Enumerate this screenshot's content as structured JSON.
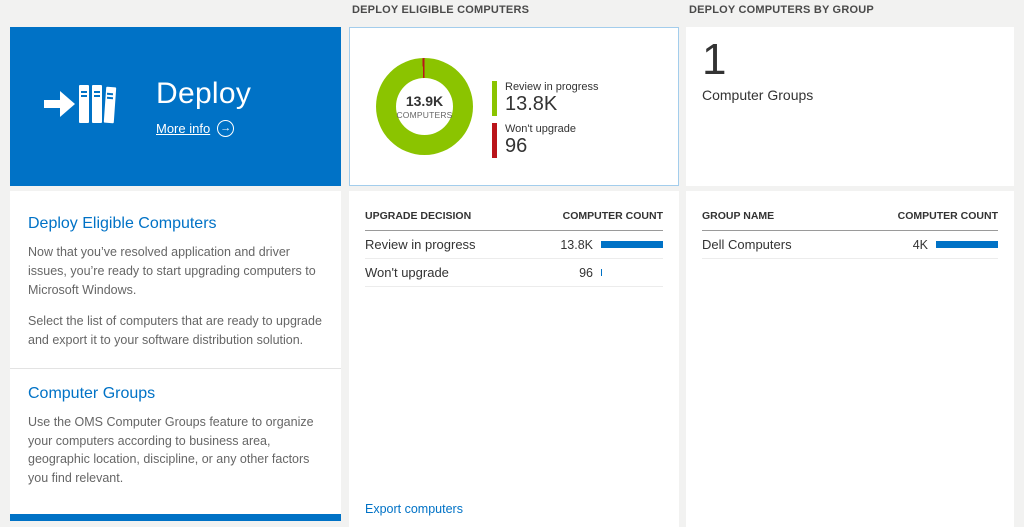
{
  "colors": {
    "accent_blue": "#0072c6",
    "donut_green": "#8bc400",
    "bar_red": "#ba141a",
    "count_bar_blue": "#0072c6"
  },
  "left_panel": {
    "tile": {
      "title": "Deploy",
      "more_info_label": "More info"
    },
    "sections": [
      {
        "heading": "Deploy Eligible Computers",
        "paragraphs": [
          "Now that you’ve resolved application and driver issues, you’re ready to start upgrading computers to Microsoft Windows.",
          "Select the list of computers that are ready to upgrade and export it to your software distribution solution."
        ]
      },
      {
        "heading": "Computer Groups",
        "paragraphs": [
          "Use the OMS Computer Groups feature to organize your computers according to business area, geographic location, discipline, or any other factors you find relevant."
        ]
      }
    ]
  },
  "middle_panel": {
    "header": "DEPLOY ELIGIBLE COMPUTERS",
    "donut": {
      "center_value": "13.9K",
      "center_label": "COMPUTERS",
      "segments": [
        {
          "label": "Review in progress",
          "value": "13.8K",
          "color": "#8bc400",
          "pct": 99.3
        },
        {
          "label": "Won't upgrade",
          "value": "96",
          "color": "#ba141a",
          "pct": 0.7
        }
      ]
    },
    "table": {
      "col1": "UPGRADE DECISION",
      "col2": "COMPUTER COUNT",
      "rows": [
        {
          "label": "Review in progress",
          "value": "13.8K",
          "bar_pct": 100
        },
        {
          "label": "Won't upgrade",
          "value": "96",
          "bar_pct": 2
        }
      ]
    },
    "export_link": "Export computers"
  },
  "right_panel": {
    "header": "DEPLOY COMPUTERS BY GROUP",
    "summary_value": "1",
    "summary_label": "Computer Groups",
    "table": {
      "col1": "GROUP NAME",
      "col2": "COMPUTER COUNT",
      "rows": [
        {
          "label": "Dell Computers",
          "value": "4K",
          "bar_pct": 100
        }
      ]
    }
  },
  "chart_data": [
    {
      "type": "pie",
      "title": "Deploy Eligible Computers",
      "labels": [
        "Review in progress",
        "Won't upgrade"
      ],
      "values": [
        13800,
        96
      ],
      "center_text": "13.9K COMPUTERS",
      "colors": [
        "#8bc400",
        "#ba141a"
      ],
      "legend_position": "right"
    },
    {
      "type": "bar",
      "title": "Upgrade Decision",
      "categories": [
        "Review in progress",
        "Won't upgrade"
      ],
      "values": [
        13800,
        96
      ],
      "xlabel": "UPGRADE DECISION",
      "ylabel": "COMPUTER COUNT"
    },
    {
      "type": "bar",
      "title": "Computers by Group",
      "categories": [
        "Dell Computers"
      ],
      "values": [
        4000
      ],
      "xlabel": "GROUP NAME",
      "ylabel": "COMPUTER COUNT"
    }
  ]
}
